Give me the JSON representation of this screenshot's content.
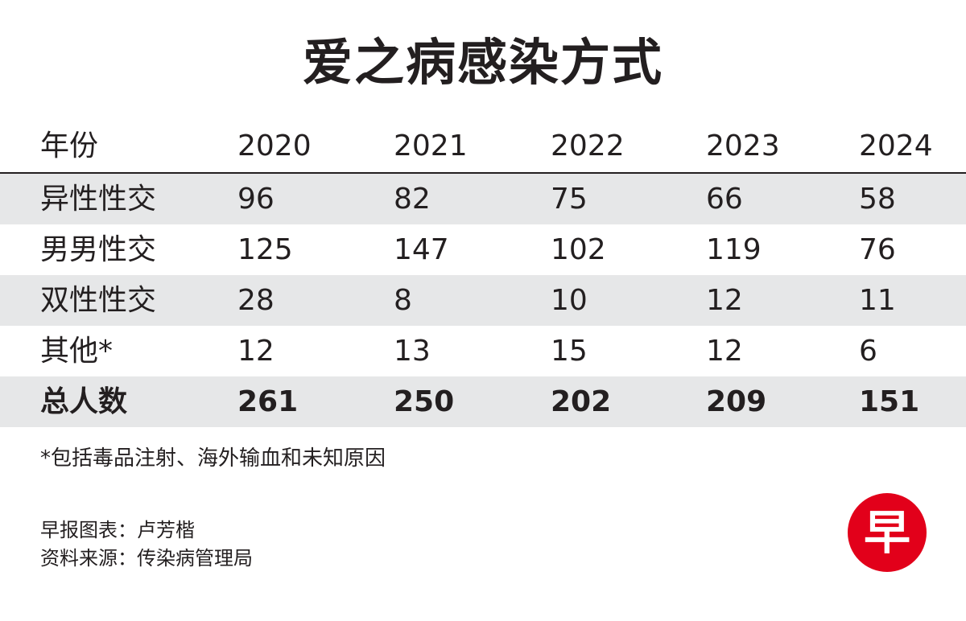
{
  "title": "爱之病感染方式",
  "chart_data": {
    "type": "table",
    "title": "爱之病感染方式",
    "columns": [
      "年份",
      "2020",
      "2021",
      "2022",
      "2023",
      "2024"
    ],
    "rows": [
      {
        "label": "异性性交",
        "values": [
          "96",
          "82",
          "75",
          "66",
          "58"
        ]
      },
      {
        "label": "男男性交",
        "values": [
          "125",
          "147",
          "102",
          "119",
          "76"
        ]
      },
      {
        "label": "双性性交",
        "values": [
          "28",
          "8",
          "10",
          "12",
          "11"
        ]
      },
      {
        "label": "其他*",
        "values": [
          "12",
          "13",
          "15",
          "12",
          "6"
        ]
      },
      {
        "label": "总人数",
        "values": [
          "261",
          "250",
          "202",
          "209",
          "151"
        ]
      }
    ]
  },
  "footnote": "*包括毒品注射、海外输血和未知原因",
  "credits": {
    "graphic": "早报图表：卢芳楷",
    "source": "资料来源：传染病管理局"
  },
  "logo": {
    "text": "早",
    "color": "#e2001a"
  },
  "colors": {
    "text": "#231f20",
    "row_shade": "#e6e7e8",
    "logo_red": "#e2001a"
  }
}
